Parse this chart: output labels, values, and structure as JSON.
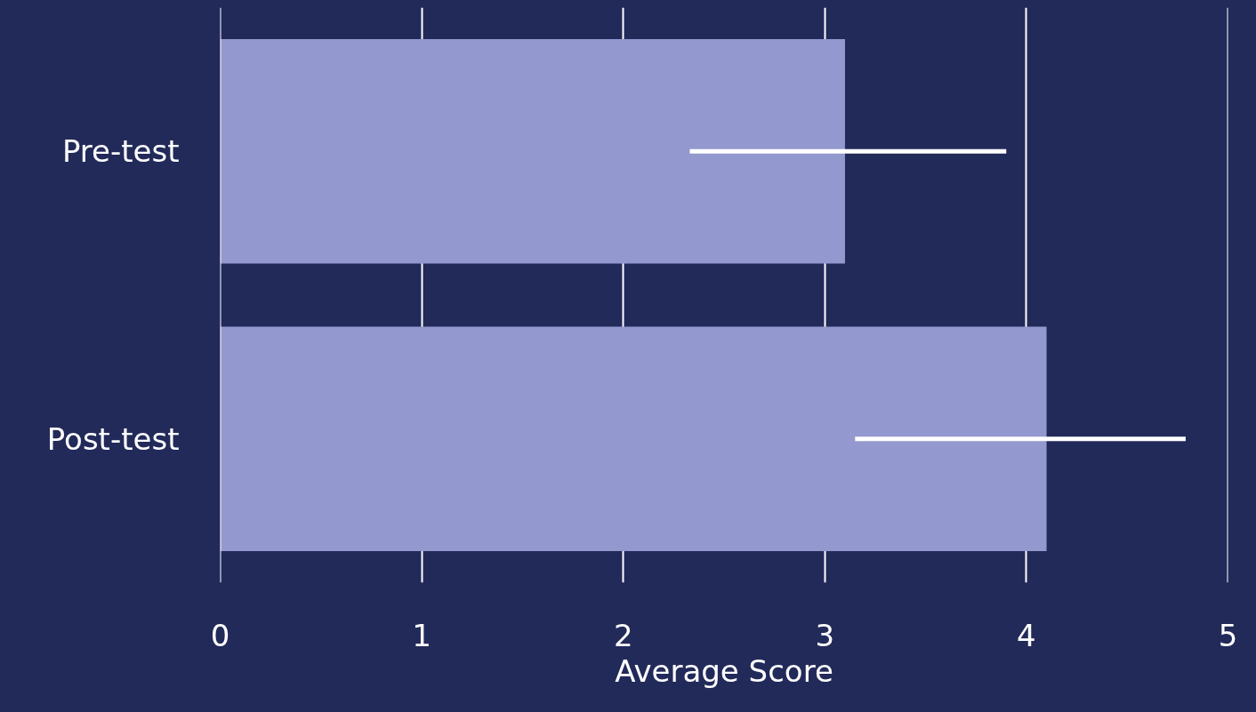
{
  "chart_data": {
    "type": "bar",
    "orientation": "horizontal",
    "categories": [
      "Pre-test",
      "Post-test"
    ],
    "values": [
      3.1,
      4.1
    ],
    "errors": [
      [
        2.33,
        3.9
      ],
      [
        3.15,
        4.79
      ]
    ],
    "color": "#9398cf",
    "xlabel": "Average Score",
    "xlim": [
      0,
      5
    ],
    "xticks": [
      0,
      1,
      2,
      3,
      4,
      5
    ],
    "grid": "x"
  }
}
